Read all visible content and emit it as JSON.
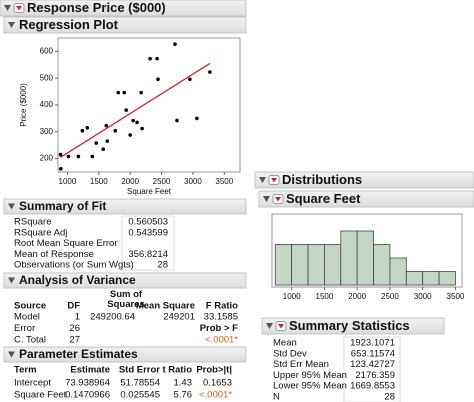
{
  "response_header": "Response Price ($000)",
  "chart_data": [
    {
      "type": "scatter",
      "title": "Regression Plot",
      "x_label": "Square Feet",
      "y_label": "Price ($000)",
      "x": [
        890,
        895,
        1016,
        1175,
        1238,
        1317,
        1397,
        1460,
        1571,
        1619,
        1635,
        1762,
        1810,
        1905,
        1937,
        2000,
        2048,
        2111,
        2175,
        2190,
        2317,
        2429,
        2444,
        2714,
        2746,
        2952,
        3063,
        3270
      ],
      "values": [
        215,
        162,
        208,
        208,
        304,
        315,
        208,
        258,
        235,
        323,
        265,
        304,
        446,
        446,
        381,
        288,
        342,
        335,
        446,
        312,
        573,
        573,
        496,
        627,
        342,
        496,
        350,
        523
      ],
      "xlim": [
        850,
        3750
      ],
      "ylim": [
        150,
        650
      ],
      "xticks": [
        1000,
        1500,
        2000,
        2500,
        3000,
        3500
      ],
      "yticks": [
        200,
        300,
        400,
        500,
        600
      ],
      "color": "#000000",
      "fit_color": "#d8202a"
    },
    {
      "type": "histogram",
      "title": "Square Feet",
      "bins": [
        750,
        1000,
        1250,
        1500,
        1750,
        2000,
        2250,
        2500,
        2750,
        3000,
        3250,
        3500
      ],
      "counts": [
        3,
        3,
        3,
        3,
        4,
        4,
        3,
        2,
        1,
        1,
        1
      ],
      "xlim": [
        700,
        3600
      ],
      "xticks": [
        1000,
        1500,
        2000,
        2500,
        3000,
        3500
      ],
      "color": "#c6d6c6"
    }
  ],
  "summary_of_fit": {
    "title": "Summary of Fit",
    "rows": [
      [
        "RSquare",
        0.560503
      ],
      [
        "RSquare Adj",
        0.543599
      ],
      [
        "Root Mean Square Error"
      ],
      [
        "Mean of Response",
        356.8214
      ],
      [
        "Observations (or Sum Wgts)",
        28
      ]
    ]
  },
  "analysis_of_variance": {
    "title": "Analysis of Variance",
    "columns": [
      "Source",
      "DF",
      "Sum of Squares",
      "Mean Square",
      "F Ratio"
    ],
    "rows": [
      {
        "source": "Model",
        "df": 1,
        "sum_of_squares": 249200.64,
        "mean_square": 249201,
        "f_ratio": 33.1585
      },
      {
        "source": "Error",
        "df": 26,
        "f_ratio": "Prob > F"
      },
      {
        "source": "C. Total",
        "df": 27,
        "f_ratio": "<.0001*"
      }
    ]
  },
  "parameter_estimates": {
    "title": "Parameter Estimates",
    "columns": [
      "Term",
      "Estimate",
      "Std Error",
      "t Ratio",
      "Prob>|t|"
    ],
    "rows": [
      {
        "term": "Intercept",
        "estimate": 73.938964,
        "std_error": 51.78554,
        "t_ratio": 1.43,
        "prob": 0.1653
      },
      {
        "term": "Square Feet",
        "estimate": 0.1470966,
        "std_error": 0.025545,
        "t_ratio": 5.76,
        "prob": "<.0001*"
      }
    ]
  },
  "distributions_header": "Distributions",
  "summary_statistics": {
    "title": "Summary Statistics",
    "rows": [
      [
        "Mean",
        1923.1071
      ],
      [
        "Std Dev",
        653.11574
      ],
      [
        "Std Err Mean",
        123.42727
      ],
      [
        "Upper 95% Mean",
        2176.359
      ],
      [
        "Lower 95% Mean",
        1669.8553
      ],
      [
        "N",
        28
      ]
    ]
  }
}
